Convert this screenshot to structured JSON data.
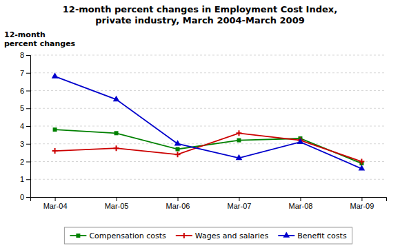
{
  "chart_data": {
    "type": "line",
    "title": "12-month percent changes in Employment Cost Index,\nprivate industry, March 2004-March 2009",
    "y_label": "12-month\npercent changes",
    "categories": [
      "Mar-04",
      "Mar-05",
      "Mar-06",
      "Mar-07",
      "Mar-08",
      "Mar-09"
    ],
    "series": [
      {
        "name": "Compensation costs",
        "color": "#008000",
        "marker": "square",
        "values": [
          3.8,
          3.6,
          2.7,
          3.2,
          3.3,
          1.9
        ]
      },
      {
        "name": "Wages and salaries",
        "color": "#CC0000",
        "marker": "plus",
        "values": [
          2.6,
          2.75,
          2.4,
          3.6,
          3.2,
          2.0
        ]
      },
      {
        "name": "Benefit costs",
        "color": "#0000CC",
        "marker": "triangle",
        "values": [
          6.8,
          5.5,
          3.0,
          2.2,
          3.1,
          1.6
        ]
      }
    ],
    "ylim": [
      0,
      8
    ],
    "yticks": [
      0,
      1,
      2,
      3,
      4,
      5,
      6,
      7,
      8
    ],
    "grid": true,
    "legend": "bottom"
  }
}
